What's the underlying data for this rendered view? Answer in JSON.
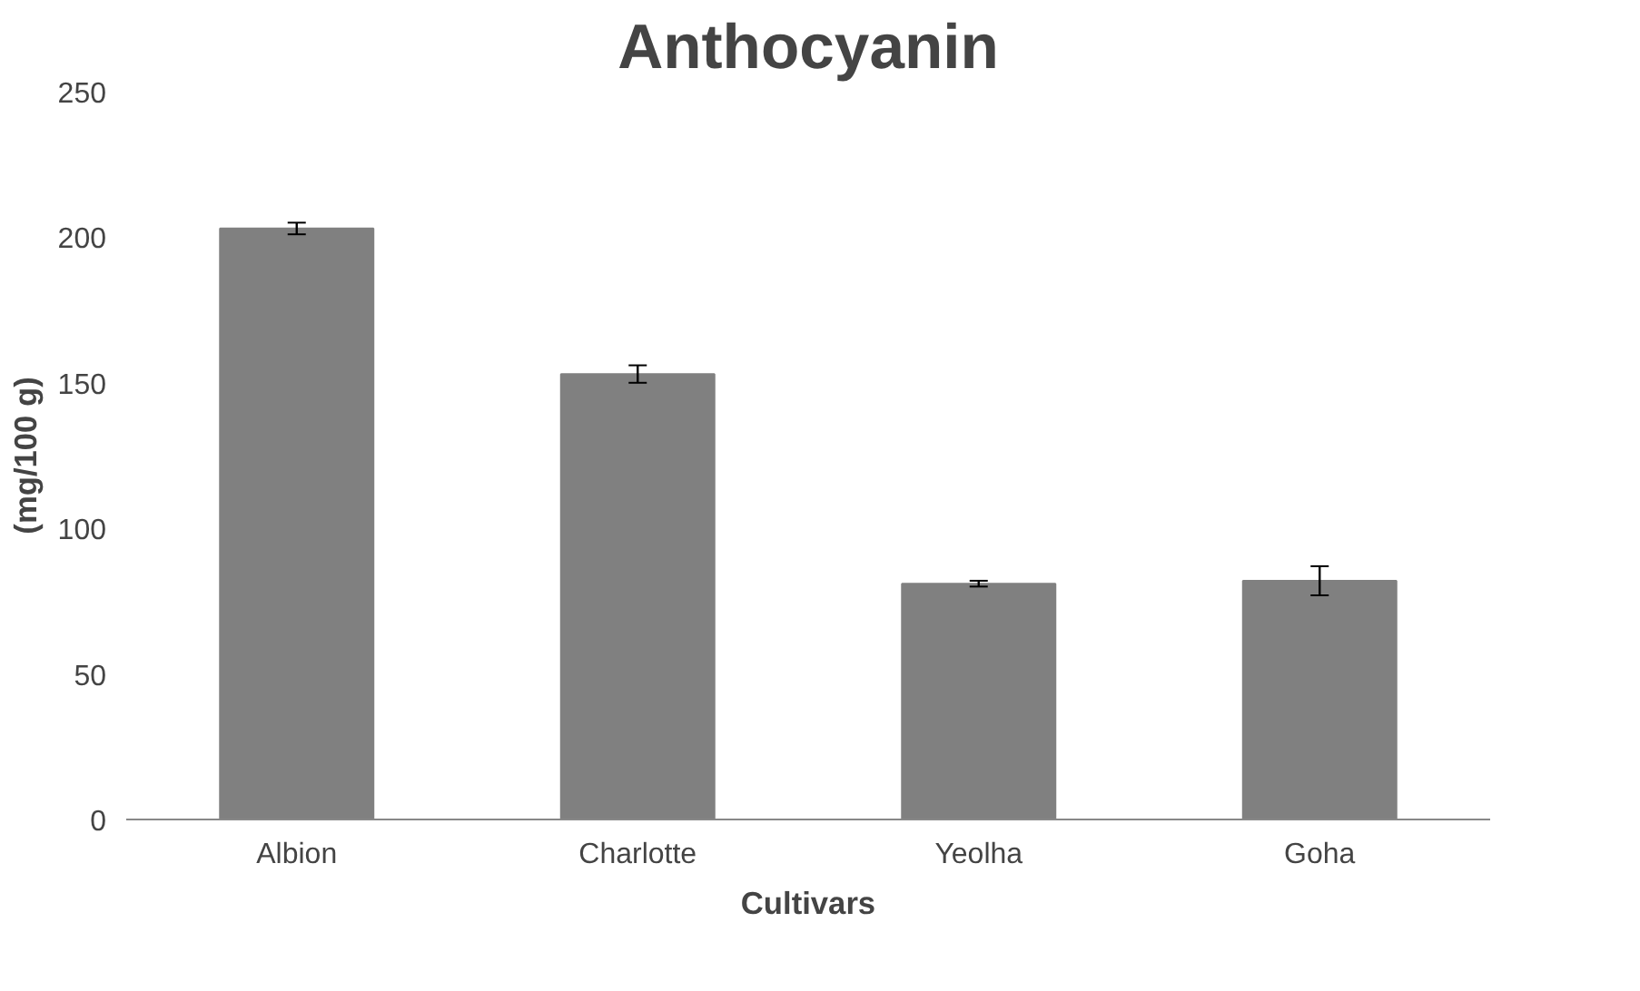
{
  "chart_data": {
    "type": "bar",
    "title": "Anthocyanin",
    "xlabel": "Cultivars",
    "ylabel": "(mg/100 g)",
    "categories": [
      "Albion",
      "Charlotte",
      "Yeolha",
      "Goha"
    ],
    "values": [
      203,
      153,
      81,
      82
    ],
    "errors": [
      2,
      3,
      1,
      5
    ],
    "color": "#808080",
    "ylim": [
      0,
      250
    ],
    "yticks": [
      0,
      50,
      100,
      150,
      200,
      250
    ],
    "grid": false
  }
}
